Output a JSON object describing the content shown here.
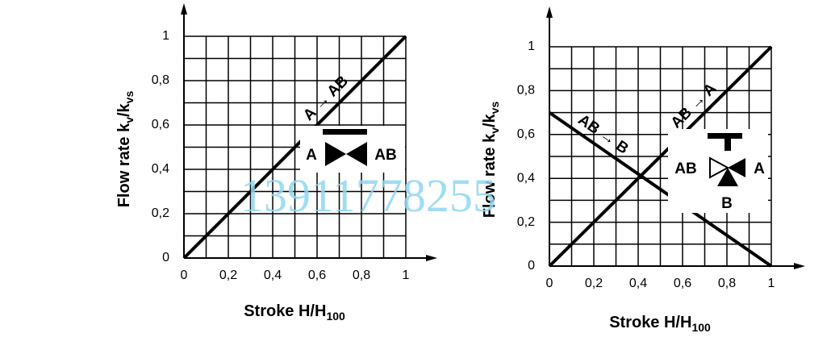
{
  "chart_data": [
    {
      "type": "line",
      "xlabel": [
        "Stroke H/H",
        "100"
      ],
      "ylabel": [
        "Flow rate k",
        "v",
        "/k",
        "vs"
      ],
      "xlim": [
        0,
        1
      ],
      "ylim": [
        0,
        1
      ],
      "xticks": [
        0,
        {
          "value": 0.2,
          "label": "0,2"
        },
        {
          "value": 0.4,
          "label": "0,4"
        },
        {
          "value": 0.6,
          "label": "0,6"
        },
        {
          "value": 0.8,
          "label": "0,8"
        },
        1
      ],
      "yticks": [
        0,
        {
          "value": 0.2,
          "label": "0,2"
        },
        {
          "value": 0.4,
          "label": "0,4"
        },
        {
          "value": 0.6,
          "label": "0,6"
        },
        {
          "value": 0.8,
          "label": "0,8"
        },
        1
      ],
      "minor_ticks": [
        0.1,
        0.3,
        0.5,
        0.7,
        0.9
      ],
      "grid": true,
      "x": [
        0,
        1
      ],
      "series": [
        {
          "name": "A → AB",
          "color": "#000000",
          "values": [
            0,
            1
          ]
        }
      ],
      "valve_labels": [
        "A",
        "AB"
      ]
    },
    {
      "type": "line",
      "xlabel": [
        "Stroke H/H",
        "100"
      ],
      "ylabel": [
        "Flow rate k",
        "v",
        "/k",
        "vs"
      ],
      "xlim": [
        0,
        1
      ],
      "ylim": [
        0,
        1
      ],
      "xticks": [
        0,
        {
          "value": 0.2,
          "label": "0,2"
        },
        {
          "value": 0.4,
          "label": "0,4"
        },
        {
          "value": 0.6,
          "label": "0,6"
        },
        {
          "value": 0.8,
          "label": "0,8"
        },
        1
      ],
      "yticks": [
        0,
        {
          "value": 0.2,
          "label": "0,2"
        },
        {
          "value": 0.4,
          "label": "0,4"
        },
        {
          "value": 0.6,
          "label": "0,6"
        },
        {
          "value": 0.8,
          "label": "0,8"
        },
        1
      ],
      "minor_ticks": [
        0.1,
        0.3,
        0.5,
        0.7,
        0.9
      ],
      "grid": true,
      "x": [
        0,
        1
      ],
      "series": [
        {
          "name": "AB → A",
          "color": "#000000",
          "values": [
            0,
            1
          ]
        },
        {
          "name": "AB → B",
          "color": "#000000",
          "values": [
            0.7,
            0
          ]
        }
      ],
      "valve_labels": [
        "AB",
        "A",
        "B"
      ]
    }
  ],
  "watermark": "13911778255"
}
